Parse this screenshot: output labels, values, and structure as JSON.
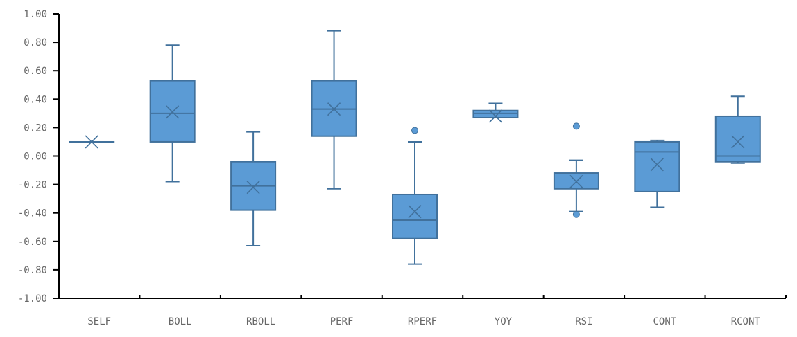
{
  "chart_data": {
    "type": "boxplot",
    "title": "",
    "xlabel": "",
    "ylabel": "",
    "ylim": [
      -1.0,
      1.0
    ],
    "yticks": [
      "1.00",
      "0.80",
      "0.60",
      "0.40",
      "0.20",
      "0.00",
      "-0.20",
      "-0.40",
      "-0.60",
      "-0.80",
      "-1.00"
    ],
    "ytick_values": [
      1.0,
      0.8,
      0.6,
      0.4,
      0.2,
      0.0,
      -0.2,
      -0.4,
      -0.6,
      -0.8,
      -1.0
    ],
    "grid": false,
    "legend": "none",
    "colors": {
      "fill": "#5b9bd5",
      "stroke": "#41719c",
      "axis": "#000000"
    },
    "categories": [
      "SELF",
      "BOLL",
      "RBOLL",
      "PERF",
      "RPERF",
      "YOY",
      "RSI",
      "CONT",
      "RCONT"
    ],
    "boxes": [
      {
        "min": 0.1,
        "q1": 0.1,
        "median": 0.1,
        "q3": 0.1,
        "max": 0.1,
        "mean": 0.1,
        "outliers": []
      },
      {
        "min": -0.18,
        "q1": 0.1,
        "median": 0.3,
        "q3": 0.53,
        "max": 0.78,
        "mean": 0.31,
        "outliers": []
      },
      {
        "min": -0.63,
        "q1": -0.38,
        "median": -0.21,
        "q3": -0.04,
        "max": 0.17,
        "mean": -0.22,
        "outliers": []
      },
      {
        "min": -0.23,
        "q1": 0.14,
        "median": 0.33,
        "q3": 0.53,
        "max": 0.88,
        "mean": 0.33,
        "outliers": []
      },
      {
        "min": -0.76,
        "q1": -0.58,
        "median": -0.45,
        "q3": -0.27,
        "max": 0.1,
        "mean": -0.39,
        "outliers": [
          0.18
        ]
      },
      {
        "min": 0.27,
        "q1": 0.27,
        "median": 0.3,
        "q3": 0.32,
        "max": 0.37,
        "mean": 0.28,
        "outliers": []
      },
      {
        "min": -0.39,
        "q1": -0.23,
        "median": -0.12,
        "q3": -0.12,
        "max": -0.03,
        "mean": -0.18,
        "outliers": [
          0.21,
          -0.41
        ]
      },
      {
        "min": -0.36,
        "q1": -0.25,
        "median": 0.03,
        "q3": 0.1,
        "max": 0.11,
        "mean": -0.06,
        "outliers": []
      },
      {
        "min": -0.05,
        "q1": -0.04,
        "median": 0.0,
        "q3": 0.28,
        "max": 0.42,
        "mean": 0.1,
        "outliers": []
      }
    ]
  }
}
